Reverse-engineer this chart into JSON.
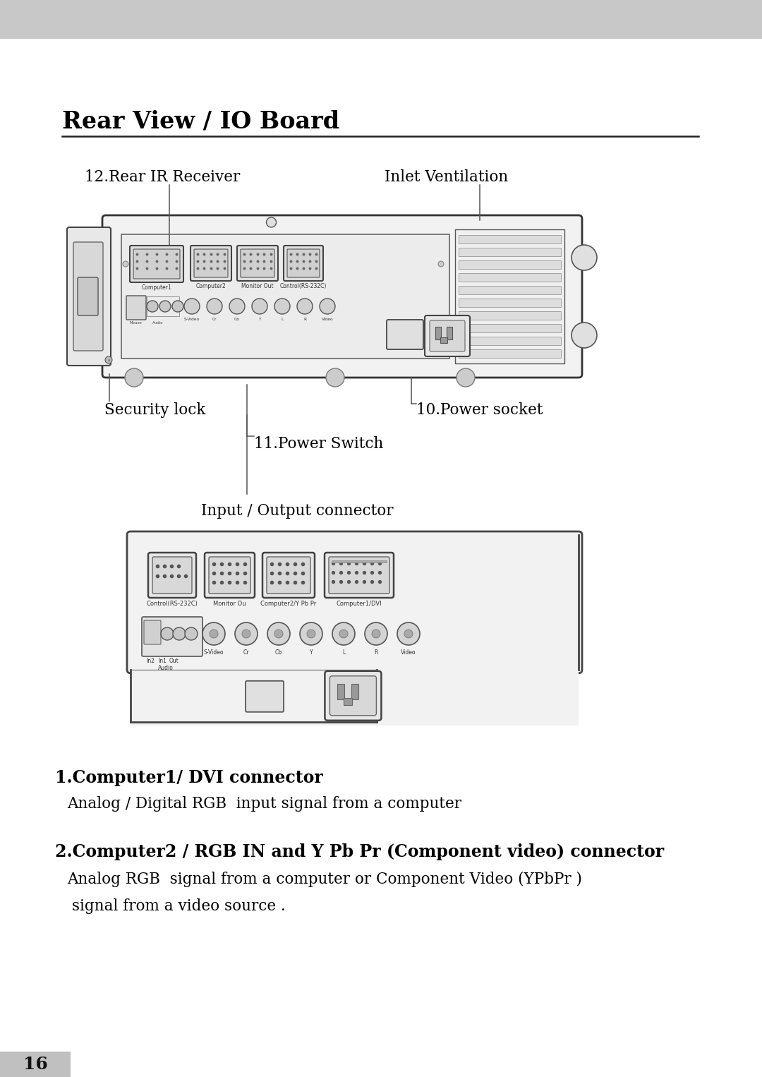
{
  "page_bg": "#ffffff",
  "header_bg": "#c8c8c8",
  "title": "Rear View / IO Board",
  "labels": {
    "rear_ir": "12.Rear IR Receiver",
    "inlet_vent": "Inlet Ventilation",
    "security_lock": "Security lock",
    "power_socket": "10.Power socket",
    "power_switch": "11.Power Switch",
    "input_output": "Input / Output connector"
  },
  "item1_bold": "1.Computer1/ DVI connector",
  "item1_text": "Analog / Digital RGB  input signal from a computer",
  "item2_bold": "2.Computer2 / RGB IN and Y Pb Pr (Component video) connector",
  "item2_text1": "Analog RGB  signal from a computer or Component Video (YPbPr )",
  "item2_text2": " signal from a video source .",
  "page_number": "16",
  "text_color": "#000000"
}
